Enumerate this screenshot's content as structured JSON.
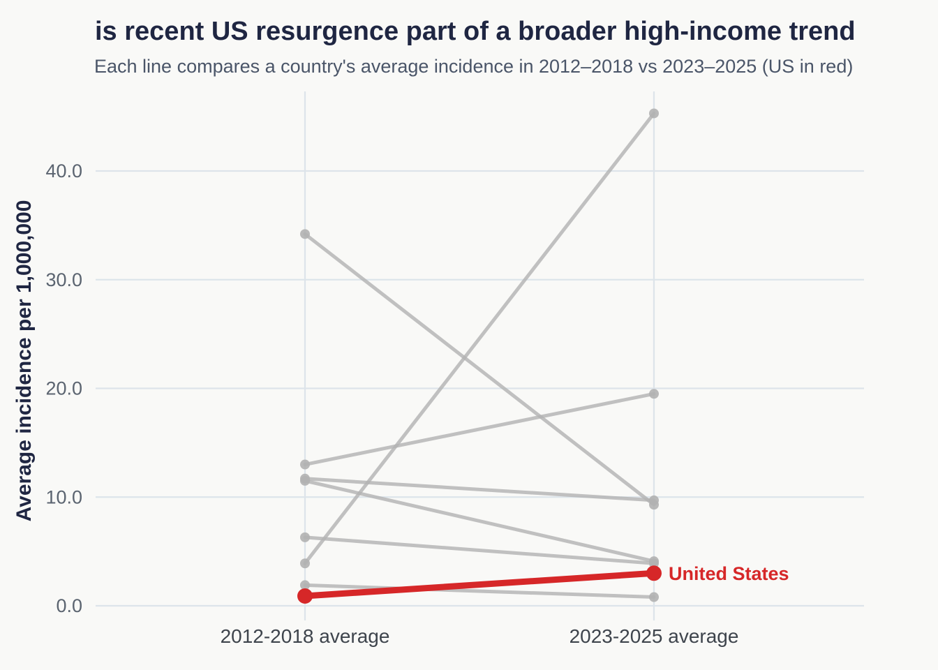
{
  "header": {
    "title": "is recent US resurgence part of a broader high-income trend",
    "subtitle": "Each line compares a country's average incidence in 2012–2018 vs 2023–2025 (US in red)"
  },
  "chart_data": {
    "type": "line",
    "subtype": "slope-chart",
    "title": "is recent US resurgence part of a broader high-income trend",
    "subtitle": "Each line compares a country's average incidence in 2012–2018 vs 2023–2025 (US in red)",
    "xlabel": "",
    "ylabel": "Average incidence per 1,000,000",
    "categories": [
      "2012-2018 average",
      "2023-2025 average"
    ],
    "y_ticks": [
      {
        "value": 0,
        "label": "0.0"
      },
      {
        "value": 10,
        "label": "10.0"
      },
      {
        "value": 20,
        "label": "20.0"
      },
      {
        "value": 30,
        "label": "30.0"
      },
      {
        "value": 40,
        "label": "40.0"
      }
    ],
    "ylim": [
      0,
      47
    ],
    "grid": true,
    "legend": "none",
    "annotation": {
      "text": "United States",
      "series": "United States",
      "position": "right-of-last-point"
    },
    "us_label": "United States",
    "series": [
      {
        "name": "country-gray-1",
        "values": [
          34.2,
          9.3
        ],
        "highlight": false
      },
      {
        "name": "country-gray-2",
        "values": [
          13.0,
          19.5
        ],
        "highlight": false
      },
      {
        "name": "country-gray-3",
        "values": [
          11.7,
          9.7
        ],
        "highlight": false
      },
      {
        "name": "country-gray-4",
        "values": [
          11.5,
          4.1
        ],
        "highlight": false
      },
      {
        "name": "country-gray-5",
        "values": [
          6.3,
          3.9
        ],
        "highlight": false
      },
      {
        "name": "country-gray-6",
        "values": [
          3.9,
          45.3
        ],
        "highlight": false
      },
      {
        "name": "country-gray-7",
        "values": [
          1.9,
          0.8
        ],
        "highlight": false
      },
      {
        "name": "United States",
        "values": [
          0.9,
          3.0
        ],
        "highlight": true
      }
    ]
  },
  "colors": {
    "background": "#f9f9f7",
    "title": "#1f2642",
    "subtitle": "#4a5568",
    "tick_label": "#5b6470",
    "x_label": "#3e444c",
    "gridline": "#dde4ea",
    "gray_series": "#b1b1b1",
    "us_red": "#d62728"
  }
}
